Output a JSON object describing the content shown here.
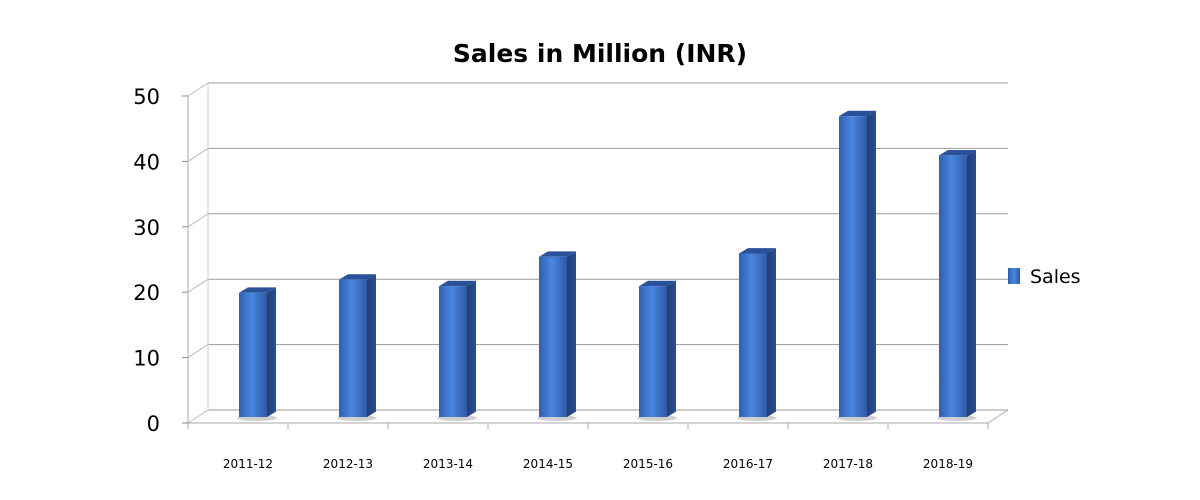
{
  "chart_data": {
    "type": "bar",
    "title": "Sales in Million (INR)",
    "xlabel": "",
    "ylabel": "",
    "categories": [
      "2011-12",
      "2012-13",
      "2013-14",
      "2014-15",
      "2015-16",
      "2016-17",
      "2017-18",
      "2018-19"
    ],
    "series": [
      {
        "name": "Sales",
        "values": [
          19,
          21,
          20,
          24.5,
          20,
          25,
          46,
          40
        ],
        "color": "#3a6fc4"
      }
    ],
    "ylim": [
      0,
      50
    ],
    "yticks": [
      "0",
      "10",
      "20",
      "30",
      "40",
      "50"
    ],
    "grid": true,
    "legend_position": "right",
    "style": "3d-column"
  }
}
